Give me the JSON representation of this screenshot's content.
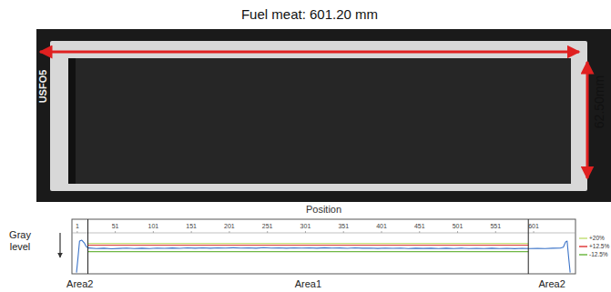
{
  "image": {
    "title": "Fuel meat: 601.20 mm",
    "width_label": "62.50mm",
    "plate_id": "USFO5"
  },
  "chart_data": {
    "type": "line",
    "title": "Position",
    "y_label": "Gray level",
    "xlim": [
      -6,
      656
    ],
    "xticks": [
      1,
      51,
      101,
      151,
      201,
      251,
      301,
      351,
      401,
      451,
      501,
      551,
      601
    ],
    "ylim": [
      0,
      100
    ],
    "tick_labels": "x",
    "grid": false,
    "legend": "right",
    "areas": [
      {
        "label": "Area2",
        "start": -6,
        "end": 15
      },
      {
        "label": "Area1",
        "start": 15,
        "end": 594
      },
      {
        "label": "Area2",
        "start": 594,
        "end": 656
      }
    ],
    "series": [
      {
        "color": "#3b73c8",
        "x": [
          0,
          2,
          4,
          7,
          10,
          13,
          16,
          26,
          36,
          46,
          56,
          66,
          76,
          86,
          96,
          106,
          116,
          126,
          136,
          146,
          156,
          166,
          176,
          186,
          196,
          206,
          216,
          226,
          236,
          246,
          256,
          266,
          276,
          286,
          296,
          306,
          316,
          326,
          336,
          346,
          356,
          366,
          376,
          386,
          396,
          406,
          416,
          426,
          436,
          446,
          456,
          466,
          476,
          486,
          496,
          506,
          516,
          526,
          536,
          546,
          556,
          566,
          576,
          586,
          596,
          606,
          616,
          626,
          636,
          640,
          643,
          645,
          647,
          649
        ],
        "values": [
          3,
          40,
          80,
          82,
          76,
          66,
          63,
          61.5,
          62.5,
          61,
          62,
          62.8,
          61.8,
          62.5,
          61.6,
          62.9,
          62.2,
          63,
          62.1,
          63.4,
          62.6,
          63.2,
          62.4,
          63.5,
          62.8,
          63.6,
          62.7,
          63.3,
          62.5,
          63.8,
          62.9,
          63.4,
          62.6,
          63.5,
          62.8,
          63.2,
          62.4,
          63.6,
          62.7,
          63.1,
          62.3,
          63.2,
          62.5,
          62.9,
          62,
          62.8,
          62.1,
          62.7,
          61.8,
          62.6,
          61.9,
          62.5,
          61.7,
          62.4,
          61.6,
          62.5,
          61.8,
          62.3,
          61.5,
          62.4,
          61.7,
          62.2,
          61.4,
          62.1,
          61.6,
          62.3,
          61.8,
          62.4,
          62.8,
          65,
          78,
          80,
          40,
          3
        ]
      },
      {
        "name": "+20%",
        "color": "#c5e07a",
        "x": [
          15,
          594
        ],
        "values": [
          74,
          74
        ]
      },
      {
        "name": "+12.5%",
        "color": "#e03c3c",
        "x": [
          15,
          594
        ],
        "values": [
          70,
          70
        ]
      },
      {
        "name": "-12.5%",
        "color": "#6fb844",
        "x": [
          15,
          594
        ],
        "values": [
          54,
          54
        ]
      }
    ]
  }
}
